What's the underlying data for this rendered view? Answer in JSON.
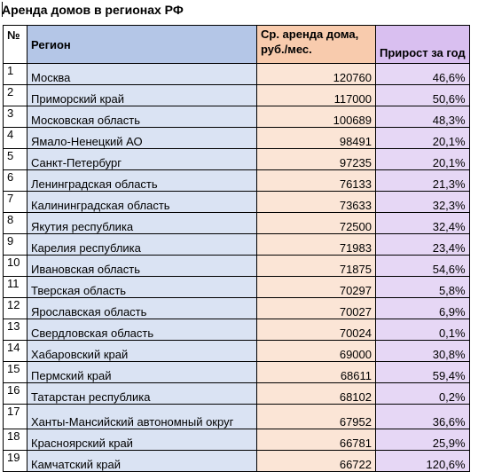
{
  "title": "Аренда домов в регионах РФ",
  "columns": {
    "num": "№",
    "region": "Регион",
    "rent": "Ср. аренда дома, руб./мес.",
    "growth": "Прирост за год"
  },
  "rows": [
    {
      "n": "1",
      "region": "Москва",
      "rent": "120760",
      "growth": "46,6%"
    },
    {
      "n": "2",
      "region": "Приморский край",
      "rent": "117000",
      "growth": "50,6%"
    },
    {
      "n": "3",
      "region": "Московская область",
      "rent": "100689",
      "growth": "48,3%"
    },
    {
      "n": "4",
      "region": "Ямало-Ненецкий АО",
      "rent": "98491",
      "growth": "20,1%"
    },
    {
      "n": "5",
      "region": "Санкт-Петербург",
      "rent": "97235",
      "growth": "20,1%"
    },
    {
      "n": "6",
      "region": "Ленинградская область",
      "rent": "76133",
      "growth": "21,3%"
    },
    {
      "n": "7",
      "region": "Калининградская область",
      "rent": "73633",
      "growth": "32,3%"
    },
    {
      "n": "8",
      "region": "Якутия республика",
      "rent": "72500",
      "growth": "32,4%"
    },
    {
      "n": "9",
      "region": "Карелия республика",
      "rent": "71983",
      "growth": "23,4%"
    },
    {
      "n": "10",
      "region": "Ивановская область",
      "rent": "71875",
      "growth": "54,6%"
    },
    {
      "n": "11",
      "region": "Тверская область",
      "rent": "70297",
      "growth": "5,8%"
    },
    {
      "n": "12",
      "region": "Ярославская область",
      "rent": "70027",
      "growth": "6,9%"
    },
    {
      "n": "13",
      "region": "Свердловская область",
      "rent": "70024",
      "growth": "0,1%"
    },
    {
      "n": "14",
      "region": "Хабаровский край",
      "rent": "69000",
      "growth": "30,8%"
    },
    {
      "n": "15",
      "region": "Пермский край",
      "rent": "68611",
      "growth": "59,4%"
    },
    {
      "n": "16",
      "region": "Татарстан республика",
      "rent": "68102",
      "growth": "0,2%"
    },
    {
      "n": "17",
      "region": "Ханты-Мансийский автономный округ",
      "rent": "67952",
      "growth": "36,6%"
    },
    {
      "n": "18",
      "region": "Красноярский край",
      "rent": "66781",
      "growth": "25,9%"
    },
    {
      "n": "19",
      "region": "Камчатский край",
      "rent": "66722",
      "growth": "120,6%"
    }
  ]
}
